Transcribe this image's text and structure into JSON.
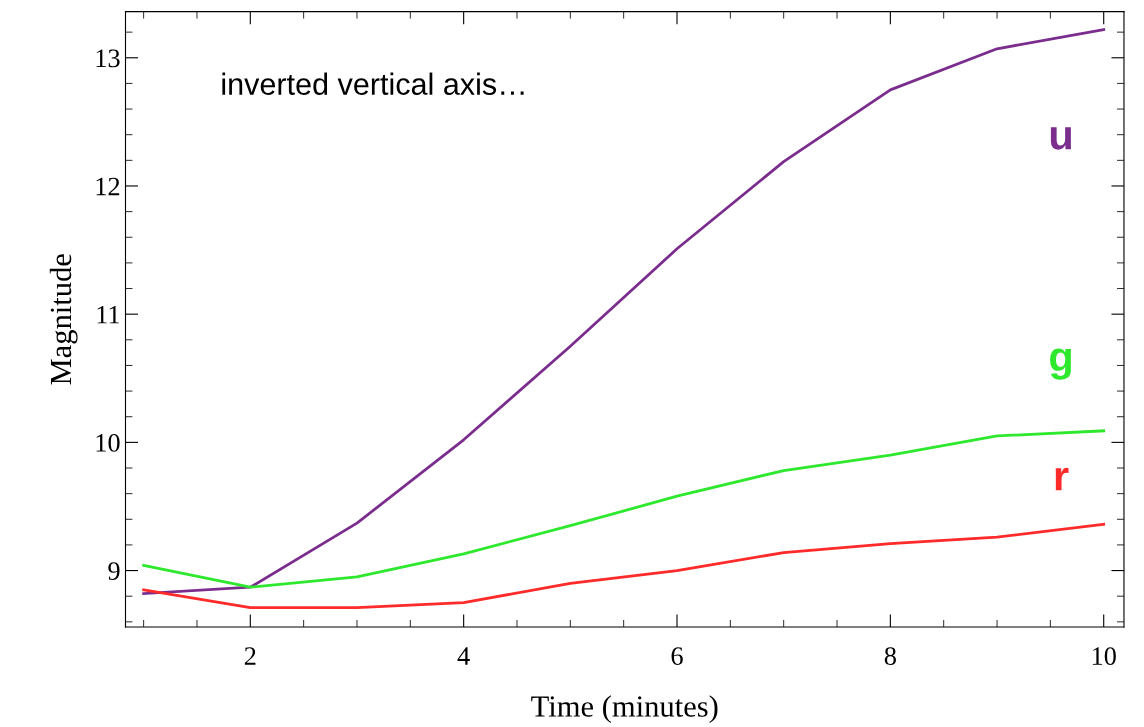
{
  "chart_data": {
    "type": "line",
    "xlabel": "Time (minutes)",
    "ylabel": "Magnitude",
    "annotations": [
      "inverted vertical axis…"
    ],
    "x": [
      1,
      2,
      3,
      4,
      5,
      6,
      7,
      8,
      9,
      10
    ],
    "series": [
      {
        "name": "u",
        "color": "#7b2d8e",
        "values": [
          8.82,
          8.87,
          9.37,
          10.02,
          10.75,
          11.51,
          12.19,
          12.75,
          13.07,
          13.22
        ]
      },
      {
        "name": "g",
        "color": "#2ee82e",
        "values": [
          9.04,
          8.87,
          8.95,
          9.13,
          9.35,
          9.58,
          9.78,
          9.9,
          10.05,
          10.09
        ]
      },
      {
        "name": "r",
        "color": "#ff2a2a",
        "values": [
          8.85,
          8.71,
          8.71,
          8.75,
          8.9,
          9.0,
          9.14,
          9.21,
          9.26,
          9.36
        ]
      }
    ],
    "xlim": [
      0.83,
      10.19
    ],
    "xticks": [
      2,
      4,
      6,
      8,
      10
    ],
    "ylim": [
      8.56,
      13.36
    ],
    "yticks": [
      9,
      10,
      11,
      12,
      13
    ],
    "grid": false,
    "legend": false,
    "marker": "none",
    "line_style": "solid"
  }
}
